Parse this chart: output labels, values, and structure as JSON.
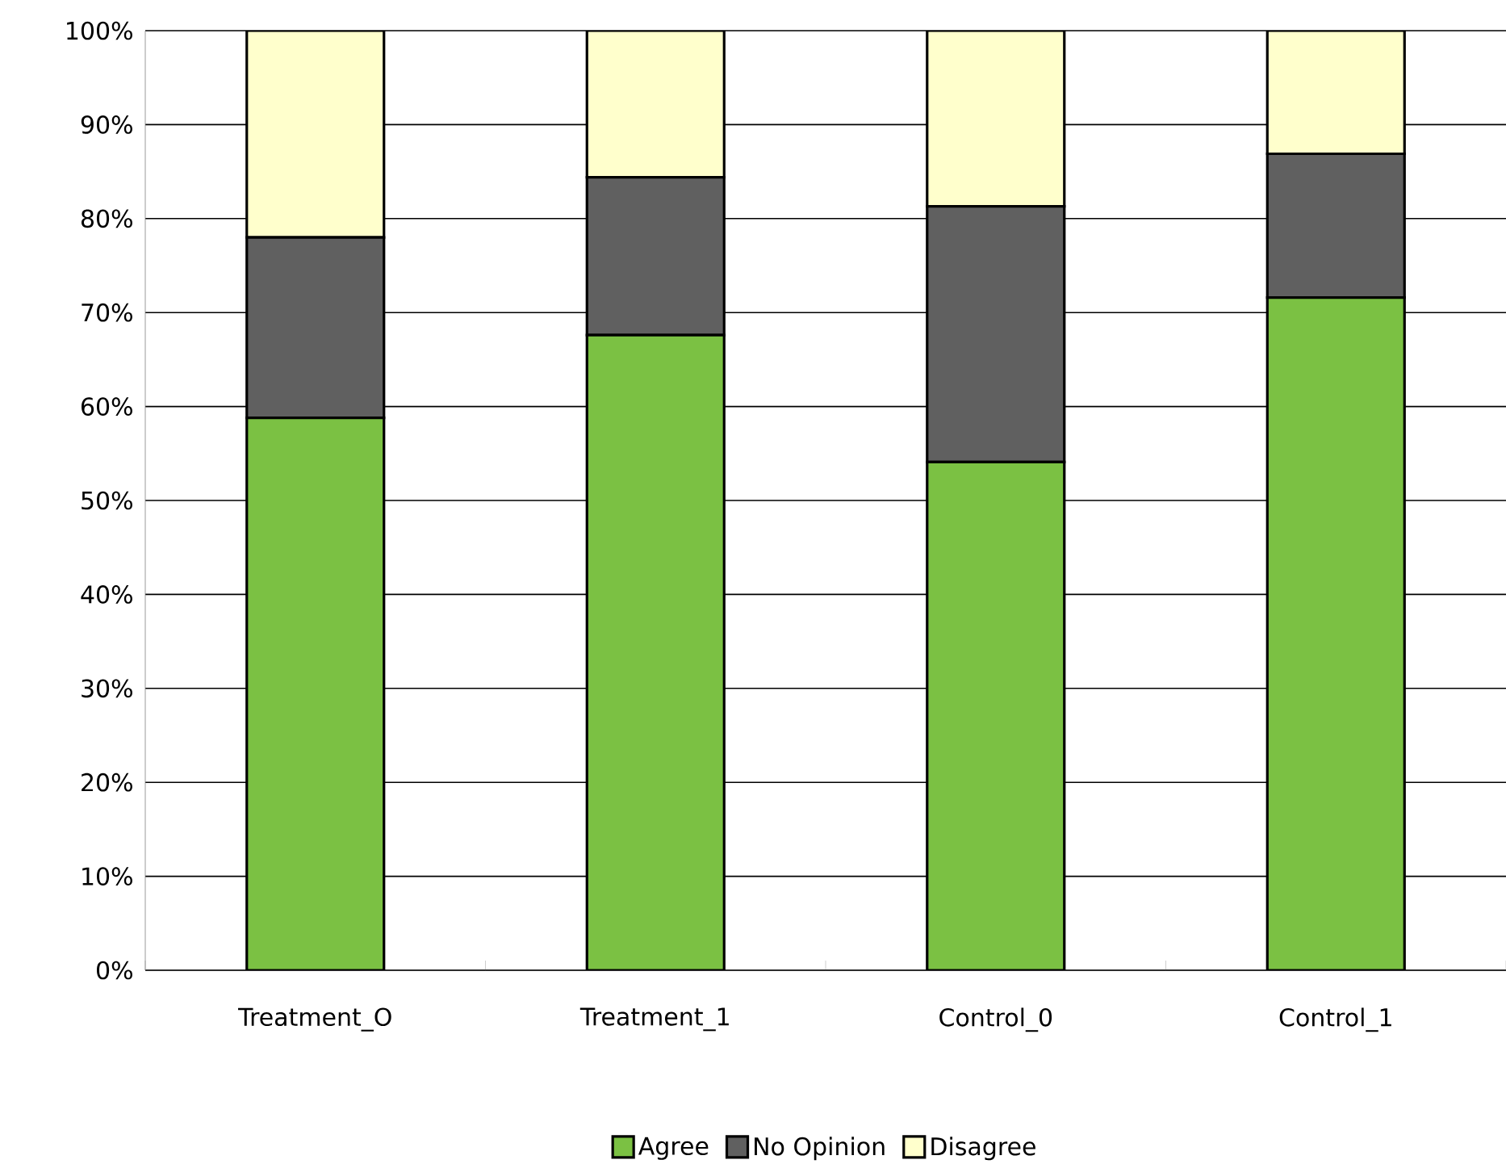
{
  "chart_data": {
    "type": "bar",
    "stacked": true,
    "categories": [
      "Treatment_O",
      "Treatment_1",
      "Control_0",
      "Control_1"
    ],
    "series": [
      {
        "name": "Agree",
        "color": "#7bc143",
        "values": [
          58.8,
          67.6,
          54.1,
          71.6
        ]
      },
      {
        "name": "No Opinion",
        "color": "#606060",
        "values": [
          19.2,
          16.8,
          27.2,
          15.3
        ]
      },
      {
        "name": "Disagree",
        "color": "#ffffcc",
        "values": [
          22.0,
          15.6,
          18.7,
          13.1
        ]
      }
    ],
    "ylim": [
      0,
      100
    ],
    "yticks": [
      {
        "value": 0,
        "label": "0%"
      },
      {
        "value": 10,
        "label": "10%"
      },
      {
        "value": 20,
        "label": "20%"
      },
      {
        "value": 30,
        "label": "30%"
      },
      {
        "value": 40,
        "label": "40%"
      },
      {
        "value": 50,
        "label": "50%"
      },
      {
        "value": 60,
        "label": "60%"
      },
      {
        "value": 70,
        "label": "70%"
      },
      {
        "value": 80,
        "label": "80%"
      },
      {
        "value": 90,
        "label": "90%"
      },
      {
        "value": 100,
        "label": "100%"
      }
    ],
    "grid": "y",
    "legend": "bottom"
  }
}
